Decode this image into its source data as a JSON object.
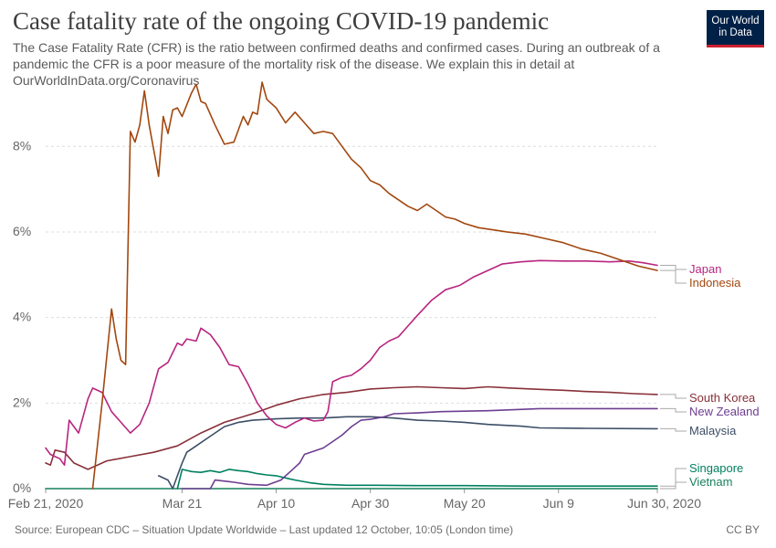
{
  "header": {
    "title": "Case fatality rate of the ongoing COVID-19 pandemic",
    "subtitle": "The Case Fatality Rate (CFR) is the ratio between confirmed deaths and confirmed cases. During an outbreak of a pandemic the CFR is a poor measure of the mortality risk of the disease. We explain this in detail at OurWorldInData.org/Coronavirus",
    "logo_line1": "Our World",
    "logo_line2": "in Data"
  },
  "footer": {
    "source": "Source: European CDC – Situation Update Worldwide – Last updated 12 October, 10:05 (London time)",
    "license": "CC BY"
  },
  "colors": {
    "Japan": "#b7257f",
    "Indonesia": "#a2470f",
    "South Korea": "#883039",
    "New Zealand": "#6d3e91",
    "Malaysia": "#3c4e66",
    "Singapore": "#00805f",
    "Vietnam": "#18805f"
  },
  "chart_data": {
    "type": "line",
    "x_unit": "date",
    "x_range": [
      "2020-02-21",
      "2020-06-30"
    ],
    "ylim": [
      0,
      9.5
    ],
    "y_unit": "%",
    "grid": "horizontal dashed",
    "y_ticks": [
      {
        "value": 0,
        "label": "0%"
      },
      {
        "value": 2,
        "label": "2%"
      },
      {
        "value": 4,
        "label": "4%"
      },
      {
        "value": 6,
        "label": "6%"
      },
      {
        "value": 8,
        "label": "8%"
      }
    ],
    "x_ticks": [
      {
        "date": "2020-02-21",
        "label": "Feb 21, 2020"
      },
      {
        "date": "2020-03-21",
        "label": "Mar 21"
      },
      {
        "date": "2020-04-10",
        "label": "Apr 10"
      },
      {
        "date": "2020-04-30",
        "label": "Apr 30"
      },
      {
        "date": "2020-05-20",
        "label": "May 20"
      },
      {
        "date": "2020-06-09",
        "label": "Jun 9"
      },
      {
        "date": "2020-06-30",
        "label": "Jun 30, 2020"
      }
    ],
    "legend_placement": "right, labels at line ends",
    "series": [
      {
        "name": "Japan",
        "points": [
          [
            "2020-02-21",
            0.95
          ],
          [
            "2020-02-22",
            0.8
          ],
          [
            "2020-02-23",
            0.75
          ],
          [
            "2020-02-24",
            0.7
          ],
          [
            "2020-02-25",
            0.55
          ],
          [
            "2020-02-26",
            1.6
          ],
          [
            "2020-02-28",
            1.3
          ],
          [
            "2020-03-01",
            2.1
          ],
          [
            "2020-03-02",
            2.35
          ],
          [
            "2020-03-04",
            2.25
          ],
          [
            "2020-03-06",
            1.8
          ],
          [
            "2020-03-08",
            1.55
          ],
          [
            "2020-03-10",
            1.3
          ],
          [
            "2020-03-12",
            1.5
          ],
          [
            "2020-03-14",
            2.0
          ],
          [
            "2020-03-16",
            2.8
          ],
          [
            "2020-03-18",
            2.95
          ],
          [
            "2020-03-20",
            3.4
          ],
          [
            "2020-03-21",
            3.35
          ],
          [
            "2020-03-22",
            3.5
          ],
          [
            "2020-03-24",
            3.45
          ],
          [
            "2020-03-25",
            3.75
          ],
          [
            "2020-03-27",
            3.6
          ],
          [
            "2020-03-29",
            3.3
          ],
          [
            "2020-03-31",
            2.9
          ],
          [
            "2020-04-02",
            2.85
          ],
          [
            "2020-04-04",
            2.45
          ],
          [
            "2020-04-06",
            2.0
          ],
          [
            "2020-04-08",
            1.7
          ],
          [
            "2020-04-10",
            1.5
          ],
          [
            "2020-04-12",
            1.42
          ],
          [
            "2020-04-14",
            1.55
          ],
          [
            "2020-04-16",
            1.65
          ],
          [
            "2020-04-18",
            1.58
          ],
          [
            "2020-04-20",
            1.6
          ],
          [
            "2020-04-21",
            1.8
          ],
          [
            "2020-04-22",
            2.5
          ],
          [
            "2020-04-24",
            2.6
          ],
          [
            "2020-04-26",
            2.65
          ],
          [
            "2020-04-28",
            2.8
          ],
          [
            "2020-04-30",
            3.0
          ],
          [
            "2020-05-02",
            3.3
          ],
          [
            "2020-05-04",
            3.45
          ],
          [
            "2020-05-06",
            3.55
          ],
          [
            "2020-05-08",
            3.8
          ],
          [
            "2020-05-10",
            4.05
          ],
          [
            "2020-05-13",
            4.4
          ],
          [
            "2020-05-16",
            4.65
          ],
          [
            "2020-05-19",
            4.75
          ],
          [
            "2020-05-22",
            4.95
          ],
          [
            "2020-05-25",
            5.1
          ],
          [
            "2020-05-28",
            5.25
          ],
          [
            "2020-06-01",
            5.3
          ],
          [
            "2020-06-05",
            5.33
          ],
          [
            "2020-06-10",
            5.32
          ],
          [
            "2020-06-15",
            5.32
          ],
          [
            "2020-06-20",
            5.3
          ],
          [
            "2020-06-24",
            5.32
          ],
          [
            "2020-06-27",
            5.28
          ],
          [
            "2020-06-30",
            5.22
          ]
        ]
      },
      {
        "name": "Indonesia",
        "points": [
          [
            "2020-03-02",
            0.0
          ],
          [
            "2020-03-04",
            2.0
          ],
          [
            "2020-03-06",
            4.2
          ],
          [
            "2020-03-07",
            3.5
          ],
          [
            "2020-03-08",
            3.0
          ],
          [
            "2020-03-09",
            2.9
          ],
          [
            "2020-03-10",
            8.35
          ],
          [
            "2020-03-11",
            8.1
          ],
          [
            "2020-03-12",
            8.5
          ],
          [
            "2020-03-13",
            9.3
          ],
          [
            "2020-03-14",
            8.5
          ],
          [
            "2020-03-16",
            7.3
          ],
          [
            "2020-03-17",
            8.7
          ],
          [
            "2020-03-18",
            8.3
          ],
          [
            "2020-03-19",
            8.85
          ],
          [
            "2020-03-20",
            8.9
          ],
          [
            "2020-03-21",
            8.7
          ],
          [
            "2020-03-23",
            9.25
          ],
          [
            "2020-03-24",
            9.45
          ],
          [
            "2020-03-25",
            9.05
          ],
          [
            "2020-03-26",
            9.0
          ],
          [
            "2020-03-28",
            8.5
          ],
          [
            "2020-03-30",
            8.05
          ],
          [
            "2020-04-01",
            8.1
          ],
          [
            "2020-04-03",
            8.7
          ],
          [
            "2020-04-04",
            8.5
          ],
          [
            "2020-04-05",
            8.8
          ],
          [
            "2020-04-06",
            8.75
          ],
          [
            "2020-04-07",
            9.5
          ],
          [
            "2020-04-08",
            9.1
          ],
          [
            "2020-04-10",
            8.9
          ],
          [
            "2020-04-12",
            8.55
          ],
          [
            "2020-04-14",
            8.8
          ],
          [
            "2020-04-16",
            8.55
          ],
          [
            "2020-04-18",
            8.3
          ],
          [
            "2020-04-20",
            8.35
          ],
          [
            "2020-04-22",
            8.3
          ],
          [
            "2020-04-24",
            8.0
          ],
          [
            "2020-04-26",
            7.7
          ],
          [
            "2020-04-28",
            7.5
          ],
          [
            "2020-04-30",
            7.2
          ],
          [
            "2020-05-02",
            7.1
          ],
          [
            "2020-05-04",
            6.9
          ],
          [
            "2020-05-06",
            6.75
          ],
          [
            "2020-05-08",
            6.6
          ],
          [
            "2020-05-10",
            6.5
          ],
          [
            "2020-05-12",
            6.65
          ],
          [
            "2020-05-14",
            6.5
          ],
          [
            "2020-05-16",
            6.35
          ],
          [
            "2020-05-18",
            6.3
          ],
          [
            "2020-05-20",
            6.2
          ],
          [
            "2020-05-23",
            6.1
          ],
          [
            "2020-05-26",
            6.05
          ],
          [
            "2020-05-29",
            6.0
          ],
          [
            "2020-06-02",
            5.95
          ],
          [
            "2020-06-06",
            5.85
          ],
          [
            "2020-06-10",
            5.75
          ],
          [
            "2020-06-14",
            5.6
          ],
          [
            "2020-06-18",
            5.5
          ],
          [
            "2020-06-22",
            5.35
          ],
          [
            "2020-06-26",
            5.2
          ],
          [
            "2020-06-30",
            5.1
          ]
        ]
      },
      {
        "name": "South Korea",
        "points": [
          [
            "2020-02-21",
            0.6
          ],
          [
            "2020-02-22",
            0.55
          ],
          [
            "2020-02-23",
            0.9
          ],
          [
            "2020-02-25",
            0.85
          ],
          [
            "2020-02-27",
            0.6
          ],
          [
            "2020-03-01",
            0.45
          ],
          [
            "2020-03-05",
            0.65
          ],
          [
            "2020-03-10",
            0.75
          ],
          [
            "2020-03-15",
            0.85
          ],
          [
            "2020-03-20",
            1.0
          ],
          [
            "2020-03-25",
            1.3
          ],
          [
            "2020-03-30",
            1.55
          ],
          [
            "2020-04-05",
            1.75
          ],
          [
            "2020-04-10",
            1.95
          ],
          [
            "2020-04-15",
            2.1
          ],
          [
            "2020-04-20",
            2.2
          ],
          [
            "2020-04-25",
            2.25
          ],
          [
            "2020-04-30",
            2.33
          ],
          [
            "2020-05-05",
            2.36
          ],
          [
            "2020-05-10",
            2.38
          ],
          [
            "2020-05-15",
            2.36
          ],
          [
            "2020-05-20",
            2.34
          ],
          [
            "2020-05-25",
            2.38
          ],
          [
            "2020-05-30",
            2.35
          ],
          [
            "2020-06-05",
            2.32
          ],
          [
            "2020-06-10",
            2.3
          ],
          [
            "2020-06-15",
            2.27
          ],
          [
            "2020-06-20",
            2.25
          ],
          [
            "2020-06-25",
            2.22
          ],
          [
            "2020-06-30",
            2.2
          ]
        ]
      },
      {
        "name": "New Zealand",
        "points": [
          [
            "2020-03-21",
            0.0
          ],
          [
            "2020-03-27",
            0.0
          ],
          [
            "2020-03-28",
            0.2
          ],
          [
            "2020-04-01",
            0.15
          ],
          [
            "2020-04-04",
            0.1
          ],
          [
            "2020-04-08",
            0.08
          ],
          [
            "2020-04-11",
            0.2
          ],
          [
            "2020-04-13",
            0.4
          ],
          [
            "2020-04-15",
            0.6
          ],
          [
            "2020-04-16",
            0.8
          ],
          [
            "2020-04-20",
            0.95
          ],
          [
            "2020-04-22",
            1.1
          ],
          [
            "2020-04-24",
            1.25
          ],
          [
            "2020-04-26",
            1.45
          ],
          [
            "2020-04-28",
            1.6
          ],
          [
            "2020-04-30",
            1.62
          ],
          [
            "2020-05-03",
            1.68
          ],
          [
            "2020-05-05",
            1.75
          ],
          [
            "2020-05-10",
            1.77
          ],
          [
            "2020-05-15",
            1.8
          ],
          [
            "2020-05-25",
            1.82
          ],
          [
            "2020-06-05",
            1.87
          ],
          [
            "2020-06-15",
            1.87
          ],
          [
            "2020-06-30",
            1.87
          ]
        ]
      },
      {
        "name": "Malaysia",
        "points": [
          [
            "2020-03-16",
            0.3
          ],
          [
            "2020-03-18",
            0.2
          ],
          [
            "2020-03-19",
            0.0
          ],
          [
            "2020-03-20",
            0.3
          ],
          [
            "2020-03-21",
            0.6
          ],
          [
            "2020-03-22",
            0.85
          ],
          [
            "2020-03-24",
            1.0
          ],
          [
            "2020-03-26",
            1.15
          ],
          [
            "2020-03-28",
            1.3
          ],
          [
            "2020-03-30",
            1.45
          ],
          [
            "2020-04-02",
            1.55
          ],
          [
            "2020-04-05",
            1.6
          ],
          [
            "2020-04-10",
            1.63
          ],
          [
            "2020-04-15",
            1.65
          ],
          [
            "2020-04-20",
            1.65
          ],
          [
            "2020-04-25",
            1.68
          ],
          [
            "2020-04-30",
            1.68
          ],
          [
            "2020-05-05",
            1.65
          ],
          [
            "2020-05-10",
            1.6
          ],
          [
            "2020-05-15",
            1.58
          ],
          [
            "2020-05-20",
            1.55
          ],
          [
            "2020-05-25",
            1.5
          ],
          [
            "2020-06-01",
            1.46
          ],
          [
            "2020-06-05",
            1.42
          ],
          [
            "2020-06-15",
            1.41
          ],
          [
            "2020-06-30",
            1.4
          ]
        ]
      },
      {
        "name": "Singapore",
        "points": [
          [
            "2020-03-20",
            0.0
          ],
          [
            "2020-03-21",
            0.45
          ],
          [
            "2020-03-23",
            0.4
          ],
          [
            "2020-03-25",
            0.38
          ],
          [
            "2020-03-27",
            0.42
          ],
          [
            "2020-03-29",
            0.38
          ],
          [
            "2020-03-31",
            0.45
          ],
          [
            "2020-04-02",
            0.42
          ],
          [
            "2020-04-04",
            0.4
          ],
          [
            "2020-04-06",
            0.35
          ],
          [
            "2020-04-08",
            0.32
          ],
          [
            "2020-04-10",
            0.3
          ],
          [
            "2020-04-12",
            0.25
          ],
          [
            "2020-04-14",
            0.2
          ],
          [
            "2020-04-17",
            0.14
          ],
          [
            "2020-04-20",
            0.1
          ],
          [
            "2020-04-25",
            0.08
          ],
          [
            "2020-05-01",
            0.08
          ],
          [
            "2020-05-10",
            0.07
          ],
          [
            "2020-05-20",
            0.07
          ],
          [
            "2020-06-01",
            0.06
          ],
          [
            "2020-06-15",
            0.06
          ],
          [
            "2020-06-30",
            0.06
          ]
        ]
      },
      {
        "name": "Vietnam",
        "points": [
          [
            "2020-02-21",
            0.0
          ],
          [
            "2020-06-30",
            0.0
          ]
        ]
      }
    ],
    "labels": [
      {
        "series": "Japan",
        "text": "Japan"
      },
      {
        "series": "Indonesia",
        "text": "Indonesia"
      },
      {
        "series": "South Korea",
        "text": "South Korea"
      },
      {
        "series": "New Zealand",
        "text": "New Zealand"
      },
      {
        "series": "Malaysia",
        "text": "Malaysia"
      },
      {
        "series": "Singapore",
        "text": "Singapore"
      },
      {
        "series": "Vietnam",
        "text": "Vietnam"
      }
    ]
  }
}
